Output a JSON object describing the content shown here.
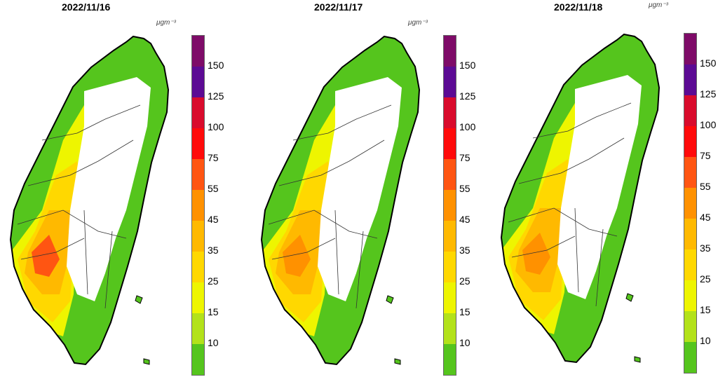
{
  "unit": "μgm⁻³",
  "maps": [
    {
      "date": "2022/11/16"
    },
    {
      "date": "2022/11/17"
    },
    {
      "date": "2022/11/18"
    }
  ],
  "colorbar": {
    "labels": [
      "10",
      "15",
      "25",
      "35",
      "45",
      "55",
      "75",
      "100",
      "125",
      "150"
    ],
    "colors": [
      "#55c51d",
      "#b3e21a",
      "#eef500",
      "#ffd800",
      "#ffb900",
      "#ff9100",
      "#ff5512",
      "#ff0a0a",
      "#d90b2c",
      "#5c0a94",
      "#7e0b68"
    ]
  }
}
